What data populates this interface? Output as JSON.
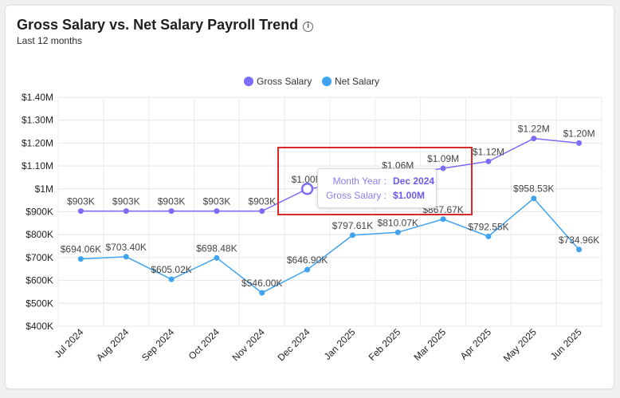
{
  "header": {
    "title": "Gross Salary vs. Net Salary Payroll Trend",
    "info_icon": "info-icon",
    "subtitle": "Last 12 months"
  },
  "tooltip": {
    "rows": [
      {
        "key": "Month Year :",
        "value": "Dec 2024"
      },
      {
        "key": "Gross Salary :",
        "value": "$1.00M"
      }
    ]
  },
  "chart_data": {
    "type": "line",
    "categories": [
      "Jul 2024",
      "Aug 2024",
      "Sep 2024",
      "Oct 2024",
      "Nov 2024",
      "Dec 2024",
      "Jan 2025",
      "Feb 2025",
      "Mar 2025",
      "Apr 2025",
      "May 2025",
      "Jun 2025"
    ],
    "y_ticks": [
      "$400K",
      "$500K",
      "$600K",
      "$700K",
      "$800K",
      "$900K",
      "$1M",
      "$1.10M",
      "$1.20M",
      "$1.30M",
      "$1.40M"
    ],
    "ylim": [
      400000,
      1400000
    ],
    "legend_position": "top-center",
    "grid": true,
    "series": [
      {
        "name": "Gross Salary",
        "color": "#7b6cf6",
        "values": [
          903000,
          903000,
          903000,
          903000,
          903000,
          1000000,
          1025000,
          1060000,
          1090000,
          1120000,
          1220000,
          1200000
        ],
        "labels": [
          "$903K",
          "$903K",
          "$903K",
          "$903K",
          "$903K",
          "$1.00M",
          "",
          "$1.06M",
          "$1.09M",
          "$1.12M",
          "$1.22M",
          "$1.20M"
        ]
      },
      {
        "name": "Net Salary",
        "color": "#3fa3ef",
        "values": [
          694060,
          703400,
          605020,
          698480,
          546000,
          646900,
          797610,
          810070,
          867670,
          792550,
          958530,
          734960
        ],
        "labels": [
          "$694.06K",
          "$703.40K",
          "$605.02K",
          "$698.48K",
          "$546.00K",
          "$646.90K",
          "$797.61K",
          "$810.07K",
          "$867.67K",
          "$792.55K",
          "$958.53K",
          "$734.96K"
        ]
      }
    ]
  }
}
